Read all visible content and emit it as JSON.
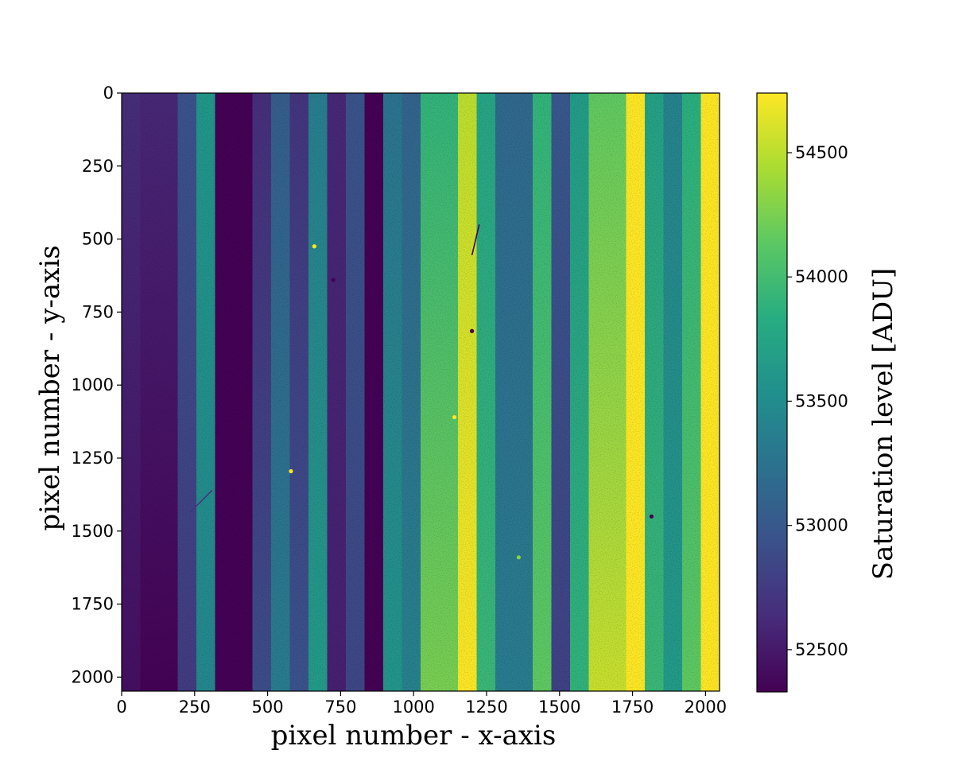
{
  "chart_data": {
    "type": "heatmap",
    "title": "",
    "xlabel": "pixel number - x-axis",
    "ylabel": "pixel number - y-axis",
    "xlim": [
      0,
      2048
    ],
    "ylim": [
      2048,
      0
    ],
    "x_ticks": [
      0,
      250,
      500,
      750,
      1000,
      1250,
      1500,
      1750,
      2000
    ],
    "y_ticks": [
      0,
      250,
      500,
      750,
      1000,
      1250,
      1500,
      1750,
      2000
    ],
    "colormap": "viridis",
    "colorbar": {
      "label": "Saturation level [ADU]",
      "range": [
        52330,
        54740
      ],
      "ticks": [
        52500,
        53000,
        53500,
        54000,
        54500
      ]
    },
    "columns": [
      {
        "x_start": 0,
        "x_end": 64,
        "top": 52650,
        "bottom": 52430
      },
      {
        "x_start": 64,
        "x_end": 192,
        "top": 52600,
        "bottom": 52340
      },
      {
        "x_start": 192,
        "x_end": 256,
        "top": 52950,
        "bottom": 52750
      },
      {
        "x_start": 256,
        "x_end": 320,
        "top": 53600,
        "bottom": 53450
      },
      {
        "x_start": 320,
        "x_end": 448,
        "top": 52340,
        "bottom": 52340
      },
      {
        "x_start": 448,
        "x_end": 512,
        "top": 52650,
        "bottom": 52900
      },
      {
        "x_start": 512,
        "x_end": 576,
        "top": 53050,
        "bottom": 53350
      },
      {
        "x_start": 576,
        "x_end": 640,
        "top": 52700,
        "bottom": 52950
      },
      {
        "x_start": 640,
        "x_end": 704,
        "top": 53350,
        "bottom": 53650
      },
      {
        "x_start": 704,
        "x_end": 768,
        "top": 52600,
        "bottom": 52550
      },
      {
        "x_start": 768,
        "x_end": 832,
        "top": 52950,
        "bottom": 52850
      },
      {
        "x_start": 832,
        "x_end": 896,
        "top": 52340,
        "bottom": 52340
      },
      {
        "x_start": 896,
        "x_end": 960,
        "top": 53250,
        "bottom": 53600
      },
      {
        "x_start": 960,
        "x_end": 1024,
        "top": 53100,
        "bottom": 53400
      },
      {
        "x_start": 1024,
        "x_end": 1152,
        "top": 53900,
        "bottom": 54250
      },
      {
        "x_start": 1152,
        "x_end": 1216,
        "top": 54500,
        "bottom": 54740
      },
      {
        "x_start": 1216,
        "x_end": 1280,
        "top": 53750,
        "bottom": 53950
      },
      {
        "x_start": 1280,
        "x_end": 1408,
        "top": 53150,
        "bottom": 53350
      },
      {
        "x_start": 1408,
        "x_end": 1472,
        "top": 53900,
        "bottom": 54150
      },
      {
        "x_start": 1472,
        "x_end": 1536,
        "top": 53000,
        "bottom": 52800
      },
      {
        "x_start": 1536,
        "x_end": 1600,
        "top": 53650,
        "bottom": 53900
      },
      {
        "x_start": 1600,
        "x_end": 1728,
        "top": 54150,
        "bottom": 54550
      },
      {
        "x_start": 1728,
        "x_end": 1792,
        "top": 54740,
        "bottom": 54740
      },
      {
        "x_start": 1792,
        "x_end": 1856,
        "top": 53700,
        "bottom": 53950
      },
      {
        "x_start": 1856,
        "x_end": 1920,
        "top": 53400,
        "bottom": 53650
      },
      {
        "x_start": 1920,
        "x_end": 1984,
        "top": 53850,
        "bottom": 54150
      },
      {
        "x_start": 1984,
        "x_end": 2048,
        "top": 54740,
        "bottom": 54740
      }
    ],
    "features": [
      {
        "kind": "spot",
        "x": 660,
        "y": 525,
        "value": 54740
      },
      {
        "kind": "spot",
        "x": 580,
        "y": 1295,
        "value": 54740
      },
      {
        "kind": "spot",
        "x": 1200,
        "y": 815,
        "value": 52340
      },
      {
        "kind": "spot",
        "x": 1140,
        "y": 1110,
        "value": 54740
      },
      {
        "kind": "spot",
        "x": 1360,
        "y": 1590,
        "value": 54300
      },
      {
        "kind": "spot",
        "x": 725,
        "y": 640,
        "value": 52340
      },
      {
        "kind": "spot",
        "x": 1815,
        "y": 1450,
        "value": 52340
      },
      {
        "kind": "streak",
        "x1": 1225,
        "y1": 450,
        "x2": 1200,
        "y2": 555,
        "value": 52340
      },
      {
        "kind": "streak",
        "x1": 310,
        "y1": 1360,
        "x2": 235,
        "y2": 1435,
        "value": 52700
      }
    ]
  }
}
